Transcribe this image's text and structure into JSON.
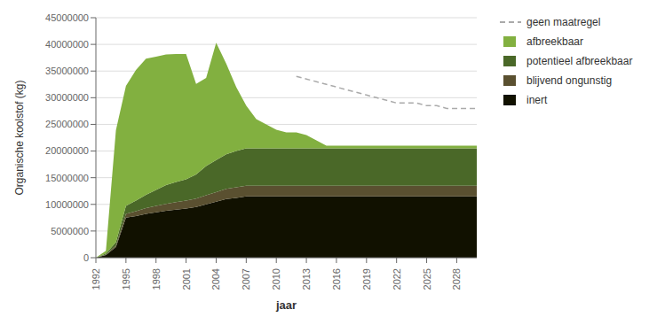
{
  "chart_data": {
    "type": "area",
    "stacked": true,
    "xlabel": "jaar",
    "ylabel": "Organische koolstof (kg)",
    "x": [
      1992,
      1993,
      1994,
      1995,
      1996,
      1997,
      1998,
      1999,
      2000,
      2001,
      2002,
      2003,
      2004,
      2005,
      2006,
      2007,
      2008,
      2009,
      2010,
      2011,
      2012,
      2013,
      2014,
      2015,
      2016,
      2017,
      2018,
      2019,
      2020,
      2021,
      2022,
      2023,
      2024,
      2025,
      2026,
      2027,
      2028,
      2029,
      2030
    ],
    "xlim": [
      1992,
      2030
    ],
    "xticks": [
      1992,
      1995,
      1998,
      2001,
      2004,
      2007,
      2010,
      2013,
      2016,
      2019,
      2022,
      2025,
      2028
    ],
    "ylim": [
      0,
      45000000
    ],
    "yticks": [
      0,
      5000000,
      10000000,
      15000000,
      20000000,
      25000000,
      30000000,
      35000000,
      40000000,
      45000000
    ],
    "grid": true,
    "legend": "right",
    "series": [
      {
        "name": "inert",
        "type": "area",
        "color": "#111100",
        "values": [
          0,
          500000,
          2000000,
          7500000,
          7800000,
          8200000,
          8500000,
          8800000,
          9000000,
          9200000,
          9500000,
          10000000,
          10500000,
          11000000,
          11200000,
          11500000,
          11500000,
          11500000,
          11500000,
          11500000,
          11500000,
          11500000,
          11500000,
          11500000,
          11500000,
          11500000,
          11500000,
          11500000,
          11500000,
          11500000,
          11500000,
          11500000,
          11500000,
          11500000,
          11500000,
          11500000,
          11500000,
          11500000,
          11500000
        ]
      },
      {
        "name": "blijvend ongunstig",
        "type": "area",
        "color": "#5a5030",
        "values": [
          0,
          100000,
          300000,
          700000,
          900000,
          1100000,
          1200000,
          1300000,
          1400000,
          1500000,
          1600000,
          1700000,
          1800000,
          1900000,
          2000000,
          2000000,
          2000000,
          2000000,
          2000000,
          2000000,
          2000000,
          2000000,
          2000000,
          2000000,
          2000000,
          2000000,
          2000000,
          2000000,
          2000000,
          2000000,
          2000000,
          2000000,
          2000000,
          2000000,
          2000000,
          2000000,
          2000000,
          2000000,
          2000000
        ]
      },
      {
        "name": "potentieel afbreekbaar",
        "type": "area",
        "color": "#4a6828",
        "values": [
          0,
          200000,
          600000,
          1500000,
          2000000,
          2500000,
          3000000,
          3500000,
          3800000,
          4000000,
          4500000,
          5500000,
          6000000,
          6500000,
          6800000,
          7000000,
          7000000,
          7000000,
          7000000,
          7000000,
          7000000,
          7000000,
          7000000,
          7000000,
          7000000,
          7000000,
          7000000,
          7000000,
          7000000,
          7000000,
          7000000,
          7000000,
          7000000,
          7000000,
          7000000,
          7000000,
          7000000,
          7000000,
          7000000
        ]
      },
      {
        "name": "afbreekbaar",
        "type": "area",
        "color": "#82b040",
        "values": [
          0,
          500000,
          21000000,
          22500000,
          24500000,
          25500000,
          25000000,
          24500000,
          24000000,
          23500000,
          17000000,
          16500000,
          22000000,
          17000000,
          12000000,
          8000000,
          5500000,
          4500000,
          3500000,
          3000000,
          3000000,
          2500000,
          1500000,
          500000,
          500000,
          500000,
          500000,
          500000,
          500000,
          500000,
          500000,
          500000,
          500000,
          500000,
          500000,
          500000,
          500000,
          500000,
          500000
        ]
      },
      {
        "name": "geen maatregel",
        "type": "line",
        "line_style": "dashed",
        "color": "#aaaaaa",
        "values": [
          null,
          null,
          null,
          null,
          null,
          null,
          null,
          null,
          null,
          null,
          null,
          null,
          null,
          null,
          null,
          null,
          null,
          null,
          null,
          null,
          34000000,
          33500000,
          33000000,
          32500000,
          32000000,
          31500000,
          31000000,
          30500000,
          30000000,
          29500000,
          29000000,
          29000000,
          29000000,
          28500000,
          28500000,
          28000000,
          28000000,
          28000000,
          28000000
        ]
      }
    ]
  }
}
